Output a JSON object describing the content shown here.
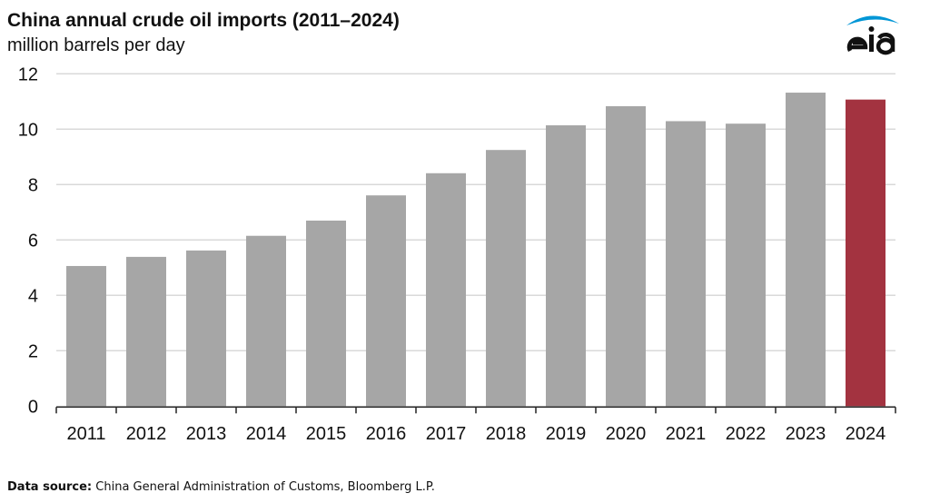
{
  "chart_data": {
    "type": "bar",
    "title": "China annual crude oil imports (2011–2024)",
    "subtitle": "million barrels per day",
    "categories": [
      "2011",
      "2012",
      "2013",
      "2014",
      "2015",
      "2016",
      "2017",
      "2018",
      "2019",
      "2020",
      "2021",
      "2022",
      "2023",
      "2024"
    ],
    "values": [
      5.06,
      5.39,
      5.62,
      6.15,
      6.7,
      7.61,
      8.41,
      9.25,
      10.14,
      10.83,
      10.29,
      10.2,
      11.32,
      11.07
    ],
    "ylim": [
      0,
      12
    ],
    "yticks": [
      0,
      2,
      4,
      6,
      8,
      10,
      12
    ],
    "grid": true,
    "colors": {
      "default": "#a6a6a6",
      "highlight": "#a33340",
      "highlight_category": "2024"
    }
  },
  "source": {
    "label": "Data source:",
    "text": " China General Administration of Customs, Bloomberg L.P."
  },
  "logo": {
    "text": "eia",
    "color": "#0096d6"
  }
}
